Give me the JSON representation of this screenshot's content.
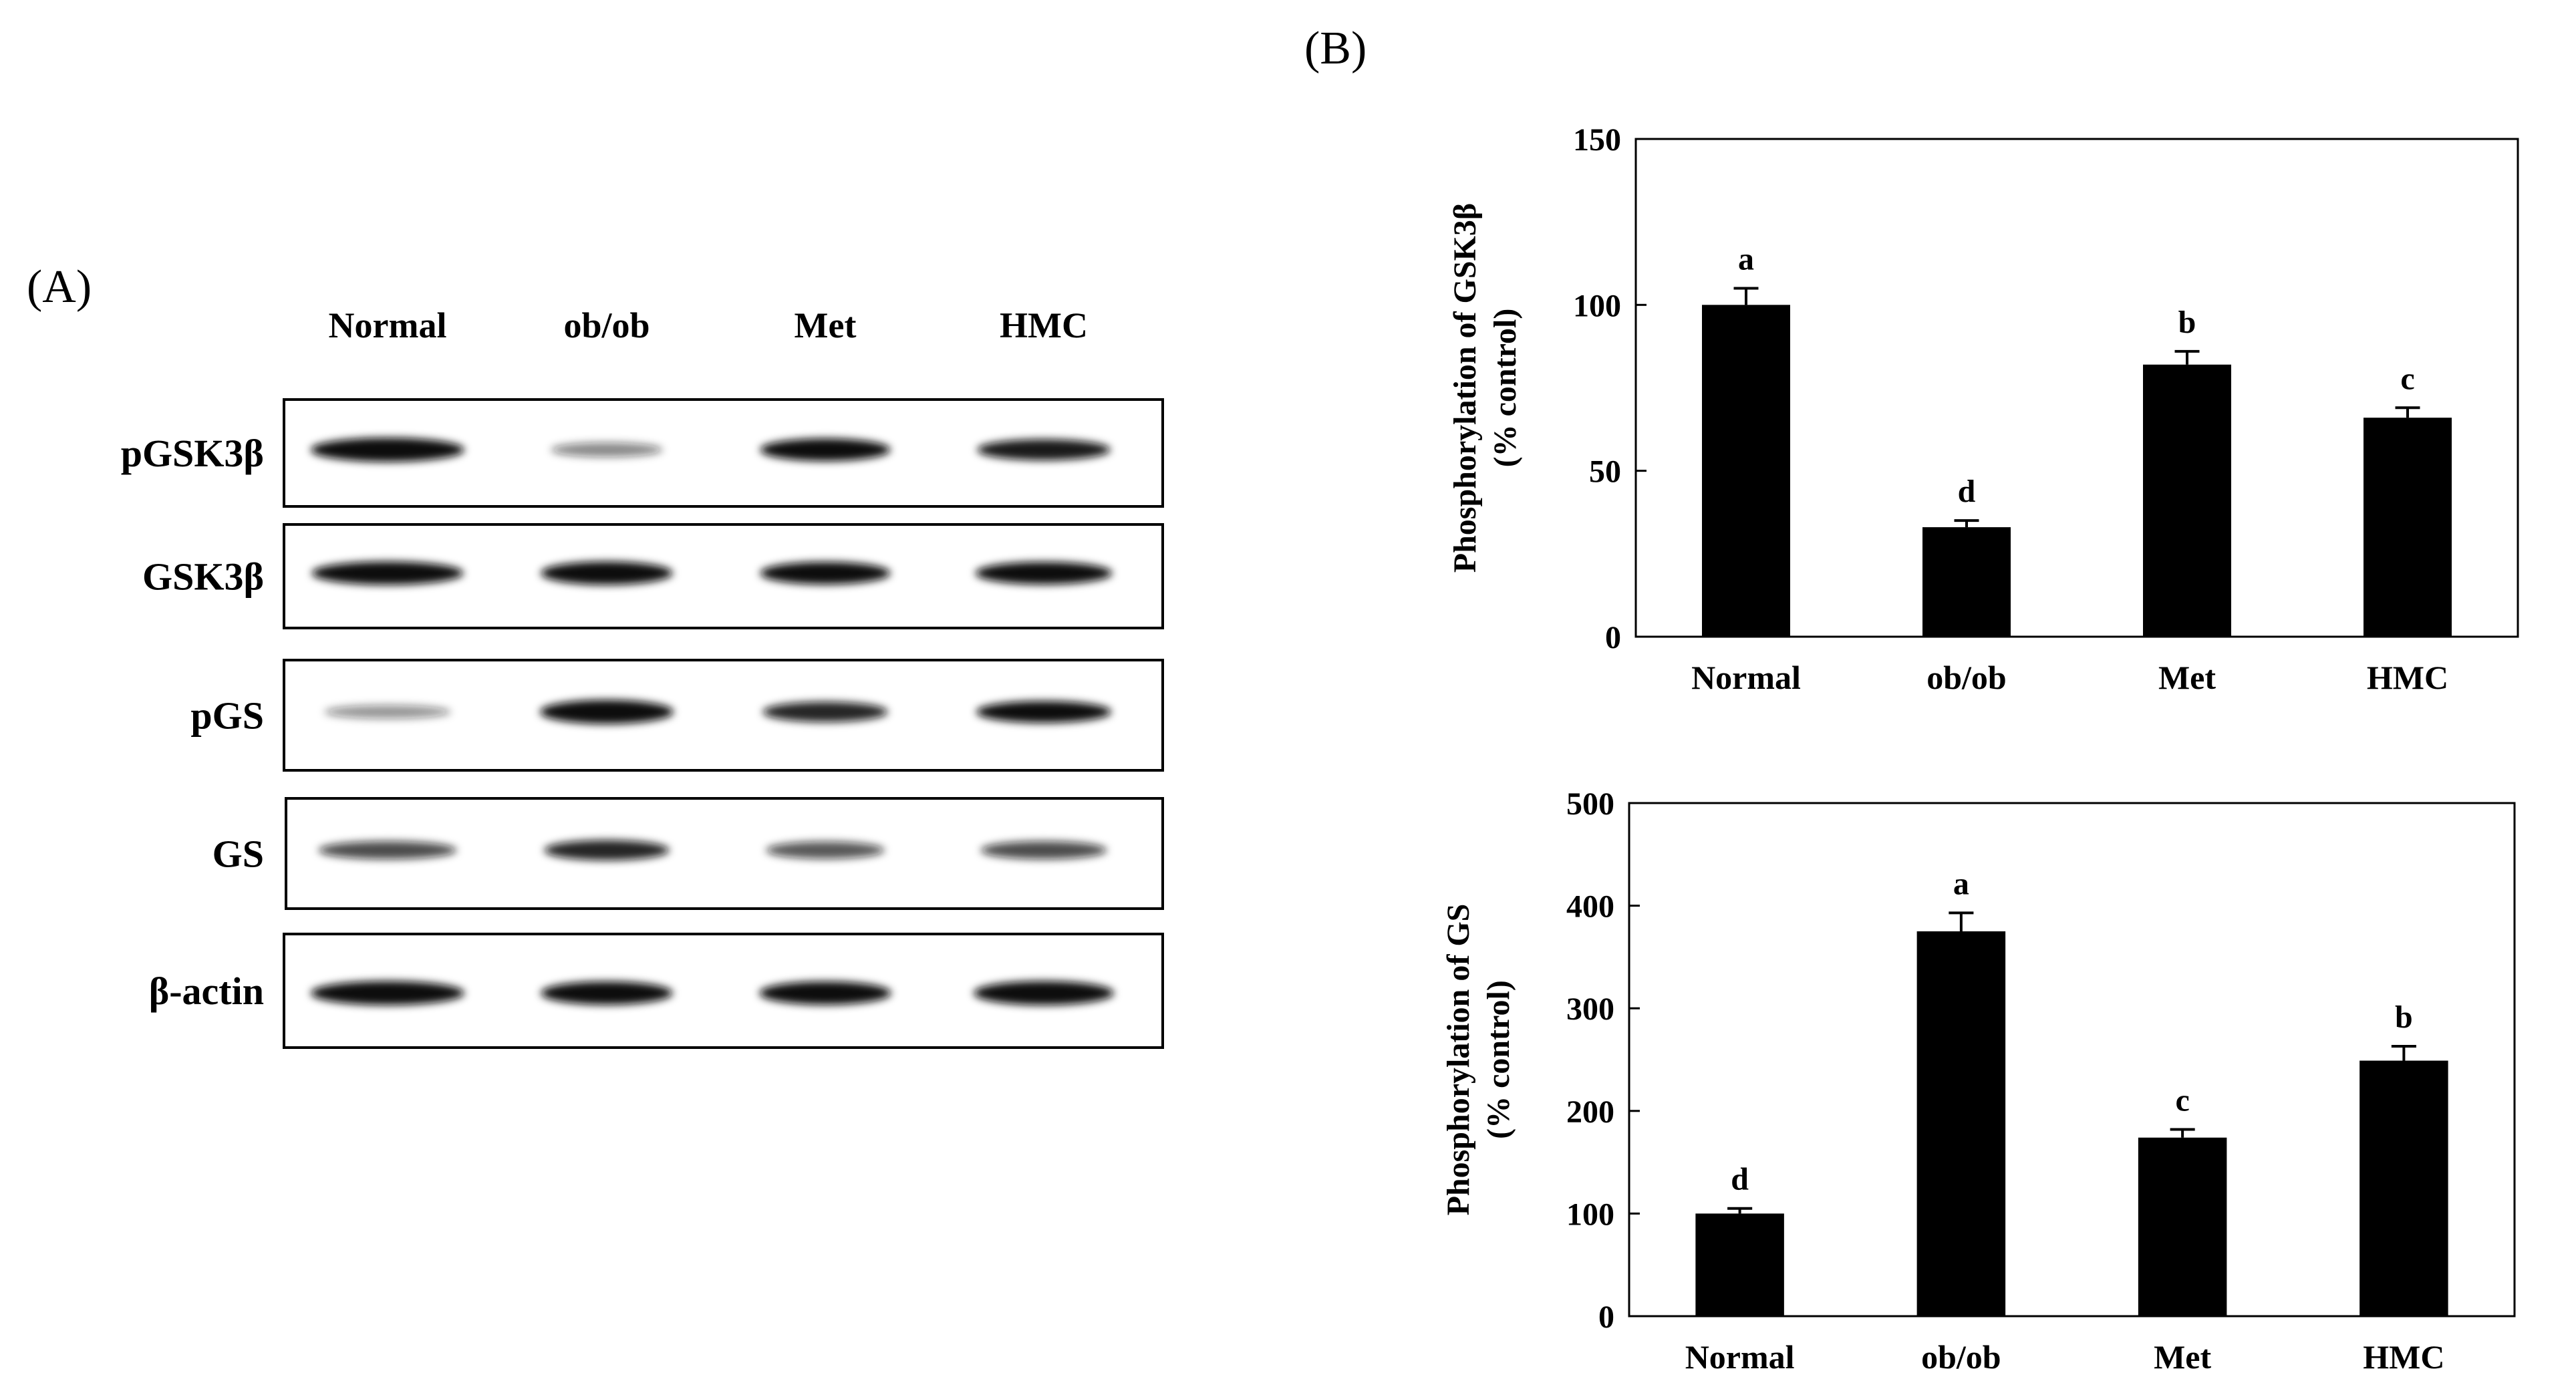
{
  "panel_a": {
    "label": "(A)",
    "lanes": [
      "Normal",
      "ob/ob",
      "Met",
      "HMC"
    ],
    "blots": [
      {
        "name": "pGSK3β",
        "bands": [
          1.0,
          0.35,
          0.9,
          0.8
        ]
      },
      {
        "name": "GSK3β",
        "bands": [
          0.95,
          0.95,
          0.9,
          0.9
        ]
      },
      {
        "name": "pGS",
        "bands": [
          0.3,
          1.0,
          0.75,
          0.85
        ]
      },
      {
        "name": "GS",
        "bands": [
          0.6,
          0.75,
          0.55,
          0.6
        ]
      },
      {
        "name": "β-actin",
        "bands": [
          1.0,
          0.95,
          0.95,
          1.0
        ]
      }
    ]
  },
  "panel_b": {
    "label": "(B)"
  },
  "chart_data": [
    {
      "type": "bar",
      "title": "",
      "categories": [
        "Normal",
        "ob/ob",
        "Met",
        "HMC"
      ],
      "values": [
        100,
        33,
        82,
        66
      ],
      "errors": [
        5,
        2,
        4,
        3
      ],
      "significance": [
        "a",
        "d",
        "b",
        "c"
      ],
      "xlabel": "",
      "ylabel": "Phosphorylation of GSK3β",
      "ylabel2": "(% control)",
      "ylim": [
        0,
        150
      ],
      "yticks": [
        0,
        50,
        100,
        150
      ],
      "grid": false
    },
    {
      "type": "bar",
      "title": "",
      "categories": [
        "Normal",
        "ob/ob",
        "Met",
        "HMC"
      ],
      "values": [
        100,
        375,
        174,
        249
      ],
      "errors": [
        5,
        18,
        8,
        14
      ],
      "significance": [
        "d",
        "a",
        "c",
        "b"
      ],
      "xlabel": "",
      "ylabel": "Phosphorylation of GS",
      "ylabel2": "(% control)",
      "ylim": [
        0,
        500
      ],
      "yticks": [
        0,
        100,
        200,
        300,
        400,
        500
      ],
      "grid": false
    }
  ],
  "colors": {
    "bar": "#000000",
    "axis": "#000000",
    "band": "#111111",
    "frame": "#000000",
    "background": "#ffffff"
  }
}
